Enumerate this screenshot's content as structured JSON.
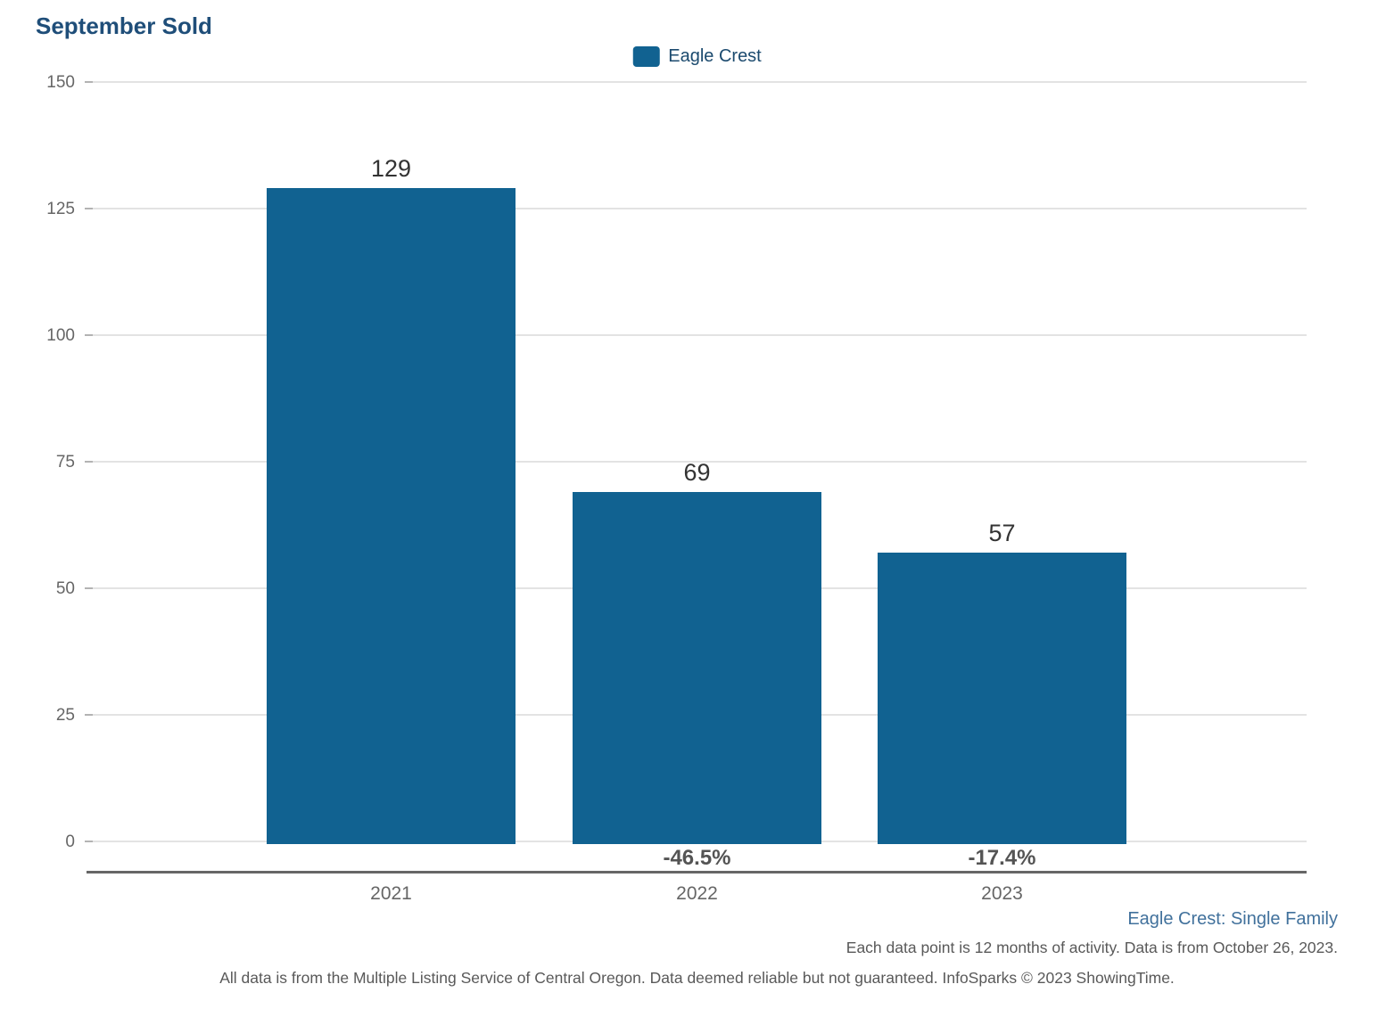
{
  "title": "September Sold",
  "legend": {
    "label": "Eagle Crest",
    "swatch_color": "#116291"
  },
  "chart_data": {
    "type": "bar",
    "title": "September Sold",
    "categories": [
      "2021",
      "2022",
      "2023"
    ],
    "series": [
      {
        "name": "Eagle Crest",
        "values": [
          129,
          69,
          57
        ],
        "color": "#116291"
      }
    ],
    "value_labels": [
      "129",
      "69",
      "57"
    ],
    "pct_change_labels": [
      "",
      "-46.5%",
      "-17.4%"
    ],
    "xlabel": "",
    "ylabel": "",
    "ylim": [
      0,
      150
    ],
    "yticks": [
      0,
      25,
      50,
      75,
      100,
      125,
      150
    ],
    "grid": "horizontal",
    "legend_position": "top-center"
  },
  "footer": {
    "series_note": "Eagle Crest: Single Family",
    "data_note": "Each data point is 12 months of activity. Data is from October 26, 2023.",
    "disclaimer": "All data is from the Multiple Listing Service of Central Oregon. Data deemed reliable but not guaranteed. InfoSparks © 2023 ShowingTime."
  },
  "colors": {
    "bar": "#116291",
    "title": "#1f4e79",
    "legend_text": "#1b4a6e",
    "tick_text": "#666666",
    "value_label_text": "#333333",
    "pct_label_text": "#545454",
    "gridline": "#e3e3e3",
    "axis_line": "#666666",
    "footer_link": "#41719c",
    "footer_text": "#595959"
  }
}
